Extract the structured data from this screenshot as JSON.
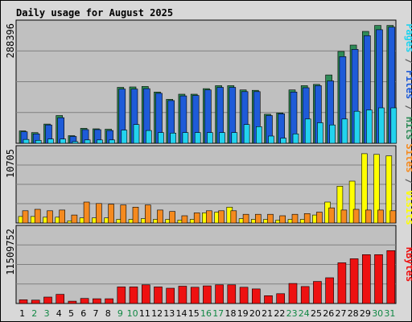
{
  "chart_data": {
    "type": "bar",
    "title": "Daily usage for August 2025",
    "days": [
      "1",
      "2",
      "3",
      "4",
      "5",
      "6",
      "7",
      "8",
      "9",
      "10",
      "11",
      "12",
      "13",
      "14",
      "15",
      "16",
      "17",
      "18",
      "19",
      "20",
      "21",
      "22",
      "23",
      "24",
      "25",
      "26",
      "27",
      "28",
      "29",
      "30",
      "31"
    ],
    "weekend_days": [
      "2",
      "3",
      "9",
      "10",
      "16",
      "17",
      "23",
      "24",
      "30",
      "31"
    ],
    "colors": {
      "hits": "#2e8b57",
      "files": "#1e5bd8",
      "pages": "#22d3ee",
      "visits": "#ffff00",
      "sites": "#f58a1f",
      "kbytes": "#ee1111",
      "title": "#0000aa",
      "weekday": "#000000",
      "weekend": "#118844",
      "panel_bg": "#c0c0c0",
      "frame_bg": "#d8d8d8"
    },
    "panels": [
      {
        "id": "top",
        "ymax_label": "288396",
        "ymax": 288396,
        "right_label": {
          "parts": [
            {
              "text": "Pages",
              "color": "#22d3ee"
            },
            {
              "text": " / ",
              "color": "#606060"
            },
            {
              "text": "Files",
              "color": "#1e5bd8"
            },
            {
              "text": " / ",
              "color": "#606060"
            },
            {
              "text": "Hits",
              "color": "#2e8b57"
            }
          ]
        },
        "series": [
          {
            "name": "Hits",
            "values": [
              29000,
              25000,
              45000,
              65000,
              18000,
              35000,
              34000,
              33000,
              131000,
              132000,
              133000,
              120000,
              103000,
              115000,
              115000,
              128000,
              135000,
              135000,
              125000,
              124000,
              68000,
              71000,
              125000,
              135000,
              138000,
              160000,
              215000,
              230000,
              262000,
              276000,
              276000
            ]
          },
          {
            "name": "Files",
            "values": [
              27000,
              22000,
              43000,
              60000,
              16000,
              32000,
              32000,
              30000,
              127000,
              127000,
              128000,
              117000,
              100000,
              111000,
              112000,
              125000,
              131000,
              131000,
              121000,
              121000,
              65000,
              69000,
              120000,
              130000,
              135000,
              146000,
              203000,
              220000,
              252000,
              266000,
              272000
            ]
          },
          {
            "name": "Pages",
            "values": [
              9000,
              7000,
              10000,
              10000,
              4000,
              8000,
              8000,
              8000,
              31000,
              44000,
              30000,
              25000,
              24000,
              25000,
              25000,
              25000,
              25000,
              25000,
              44000,
              39000,
              17000,
              12000,
              22000,
              57000,
              48000,
              43000,
              57000,
              75000,
              78000,
              83000,
              83000
            ]
          }
        ]
      },
      {
        "id": "mid",
        "ymax_label": "10705",
        "ymax": 10705,
        "right_label": {
          "parts": [
            {
              "text": "Sites",
              "color": "#f58a1f"
            },
            {
              "text": " / ",
              "color": "#606060"
            },
            {
              "text": "Visits",
              "color": "#ffff00"
            }
          ]
        },
        "series": [
          {
            "name": "Visits",
            "values": [
              900,
              900,
              800,
              800,
              300,
              700,
              700,
              700,
              500,
              500,
              600,
              500,
              500,
              400,
              500,
              1400,
              1500,
              2200,
              600,
              500,
              500,
              400,
              500,
              500,
              1100,
              2900,
              5100,
              5800,
              9600,
              9500,
              9300
            ]
          },
          {
            "name": "Sites",
            "values": [
              1700,
              1900,
              1700,
              1800,
              1100,
              2900,
              2700,
              2600,
              2500,
              2200,
              2500,
              1800,
              1600,
              1000,
              1400,
              1700,
              1700,
              1700,
              1200,
              1200,
              1200,
              1000,
              1200,
              1300,
              1500,
              2100,
              1800,
              1900,
              1800,
              1800,
              1700
            ]
          }
        ]
      },
      {
        "id": "bot",
        "ymax_label": "11509752",
        "ymax": 11509752,
        "right_label": {
          "parts": [
            {
              "text": "KBytes",
              "color": "#ee1111"
            }
          ]
        },
        "series": [
          {
            "name": "KBytes",
            "values": [
              550000,
              500000,
              950000,
              1350000,
              350000,
              750000,
              700000,
              700000,
              2450000,
              2450000,
              2750000,
              2450000,
              2250000,
              2550000,
              2400000,
              2600000,
              2750000,
              2750000,
              2400000,
              2150000,
              1150000,
              1450000,
              2950000,
              2500000,
              3250000,
              3800000,
              6000000,
              6600000,
              7200000,
              7200000,
              7800000
            ]
          }
        ]
      }
    ]
  }
}
